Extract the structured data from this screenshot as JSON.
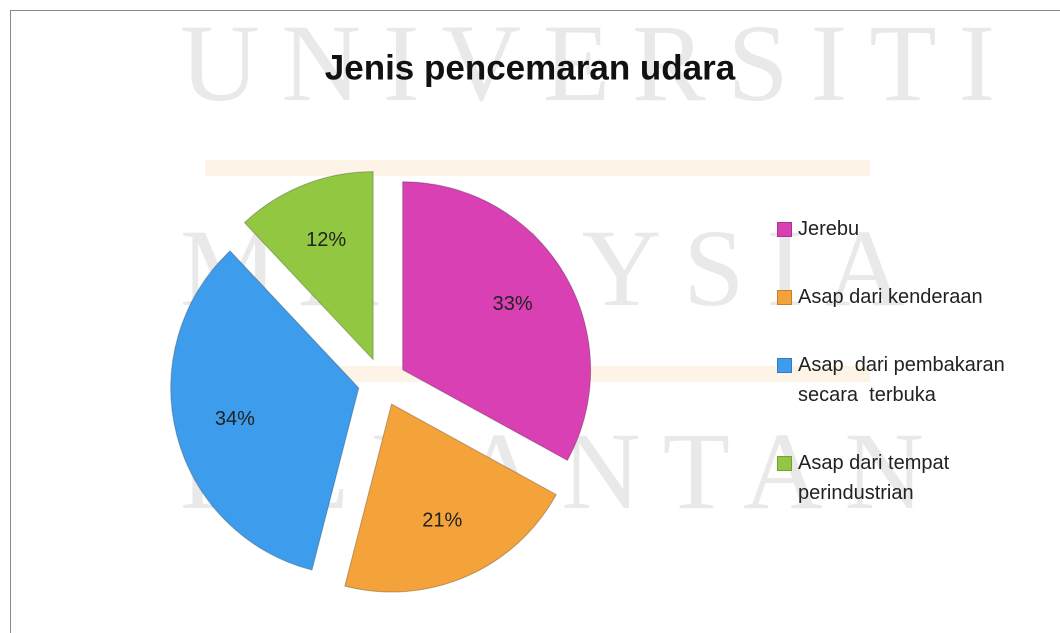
{
  "watermark": [
    "UNIVERSITI",
    "MALAYSIA",
    "KELANTAN"
  ],
  "chart_data": {
    "type": "pie",
    "title": "Jenis pencemaran udara",
    "categories": [
      "Jerebu",
      "Asap dari kenderaan",
      "Asap  dari pembakaran secara  terbuka",
      "Asap dari tempat perindustrian"
    ],
    "values": [
      33,
      21,
      34,
      12
    ],
    "value_labels": [
      "33%",
      "21%",
      "34%",
      "12%"
    ],
    "colors": [
      "#d940b4",
      "#f4a23a",
      "#3d9cec",
      "#92c841"
    ],
    "legend": "right"
  }
}
